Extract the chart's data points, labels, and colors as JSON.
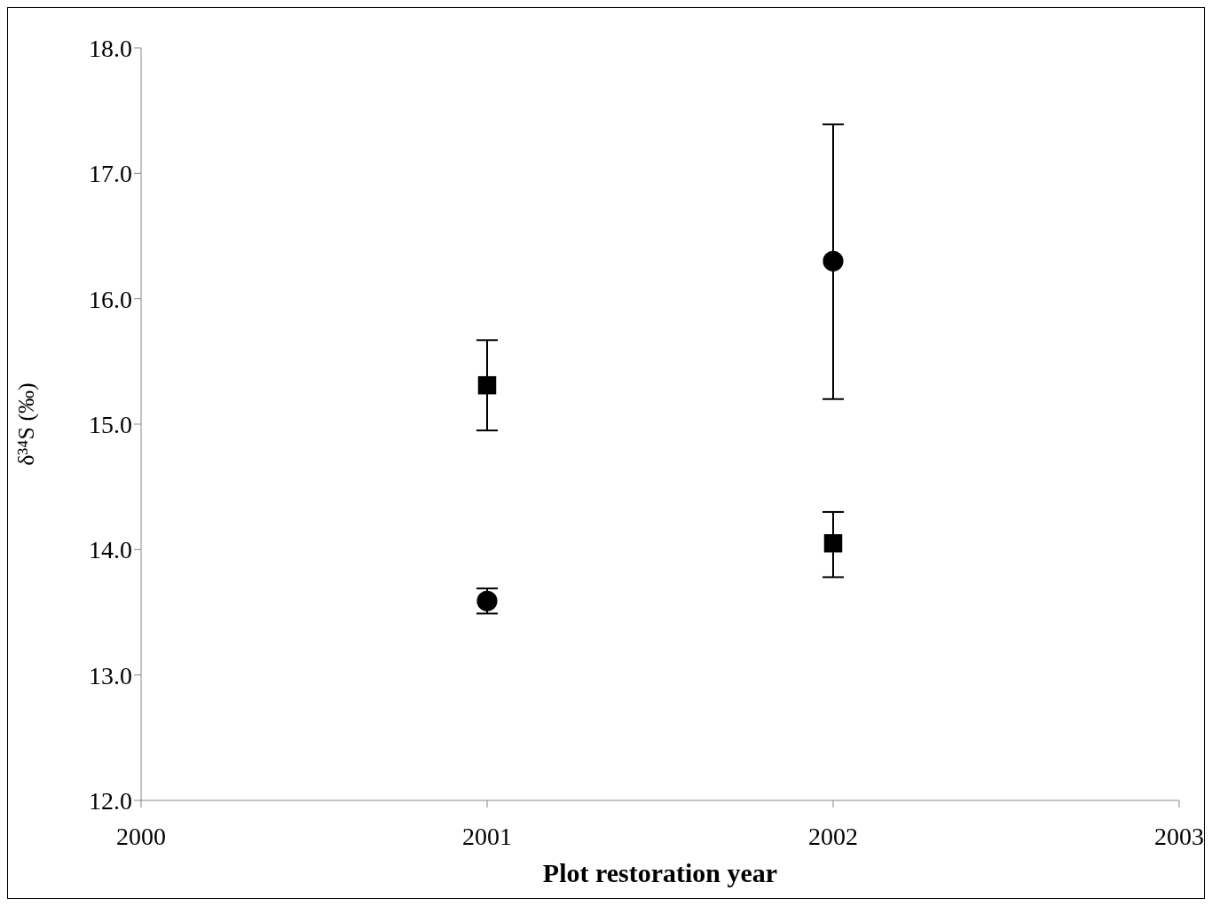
{
  "chart_data": {
    "type": "scatter",
    "xlabel": "Plot restoration year",
    "ylabel": "δ³⁴S (‰)",
    "x": [
      2001,
      2002
    ],
    "series": [
      {
        "color": "#000000",
        "marker": "square",
        "values": [
          15.31,
          14.05
        ],
        "errors": [
          [
            14.95,
            15.67
          ],
          [
            13.78,
            14.3
          ]
        ]
      },
      {
        "color": "#000000",
        "marker": "circle",
        "values": [
          13.59,
          16.3
        ],
        "errors": [
          [
            13.49,
            13.69
          ],
          [
            15.2,
            17.39
          ]
        ]
      }
    ],
    "xlim": [
      2000,
      2003
    ],
    "xticks": [
      2000,
      2001,
      2002,
      2003
    ],
    "ylim": [
      12,
      18
    ],
    "yticks": [
      {
        "value": 12,
        "label": "12.0"
      },
      {
        "value": 13,
        "label": "13.0"
      },
      {
        "value": 14,
        "label": "14.0"
      },
      {
        "value": 15,
        "label": "15.0"
      },
      {
        "value": 16,
        "label": "16.0"
      },
      {
        "value": 17,
        "label": "17.0"
      },
      {
        "value": 18,
        "label": "18.0"
      }
    ],
    "grid": false
  }
}
